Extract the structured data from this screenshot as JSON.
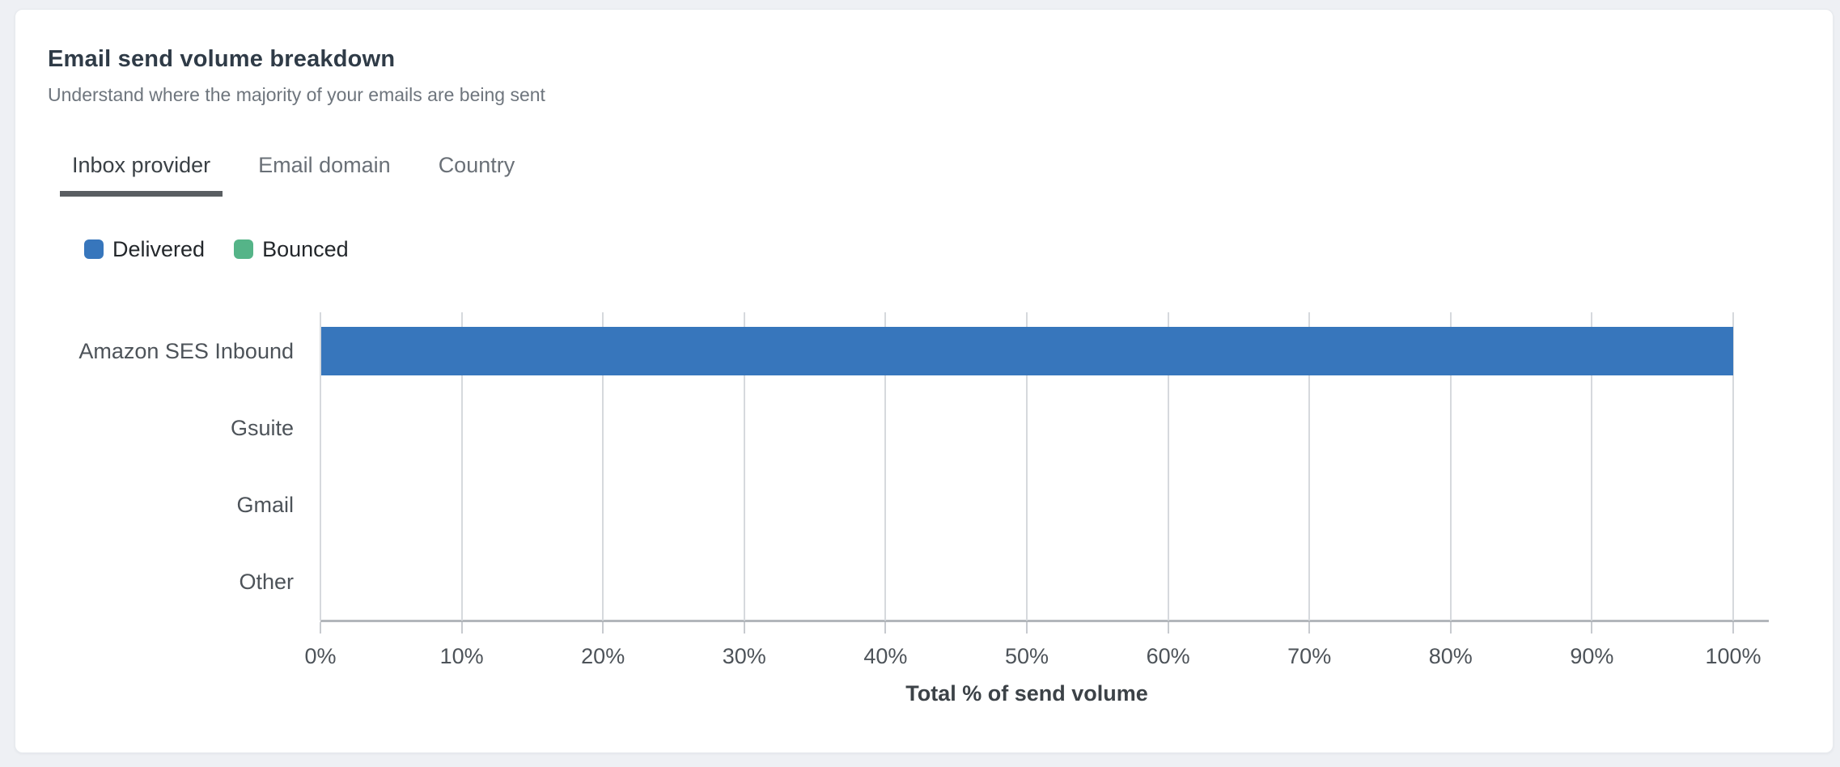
{
  "page": {
    "background": "#eef0f4"
  },
  "card": {
    "title": "Email send volume breakdown",
    "subtitle": "Understand where the majority of your emails are being sent"
  },
  "tabs": [
    {
      "label": "Inbox provider",
      "active": true
    },
    {
      "label": "Email domain",
      "active": false
    },
    {
      "label": "Country",
      "active": false
    }
  ],
  "legend": [
    {
      "label": "Delivered",
      "color": "#3776bc"
    },
    {
      "label": "Bounced",
      "color": "#55b488"
    }
  ],
  "chart_data": {
    "type": "bar",
    "orientation": "horizontal",
    "title": "Email send volume breakdown",
    "categories": [
      "Amazon SES Inbound",
      "Gsuite",
      "Gmail",
      "Other"
    ],
    "series": [
      {
        "name": "Delivered",
        "color": "#3776bc",
        "values": [
          100,
          0,
          0,
          0
        ]
      },
      {
        "name": "Bounced",
        "color": "#55b488",
        "values": [
          0,
          0,
          0,
          0
        ]
      }
    ],
    "xlabel": "Total % of send volume",
    "ylabel": "",
    "xlim": [
      0,
      100
    ],
    "x_ticks": [
      "0%",
      "10%",
      "20%",
      "30%",
      "40%",
      "50%",
      "60%",
      "70%",
      "80%",
      "90%",
      "100%"
    ],
    "grid": true,
    "legend_position": "top-left",
    "gridline_color": "#d6d9dd",
    "axis_line_color": "#b2b6bb"
  }
}
